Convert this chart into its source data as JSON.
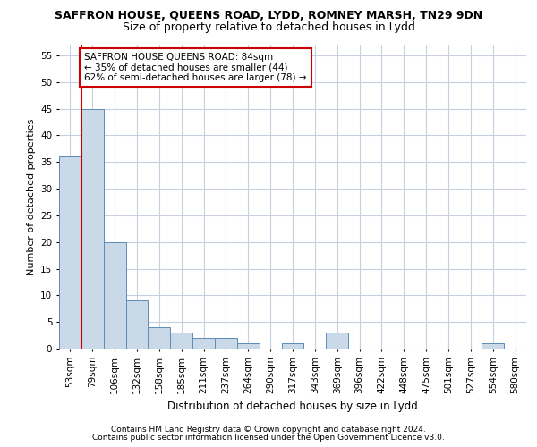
{
  "title": "SAFFRON HOUSE, QUEENS ROAD, LYDD, ROMNEY MARSH, TN29 9DN",
  "subtitle": "Size of property relative to detached houses in Lydd",
  "xlabel": "Distribution of detached houses by size in Lydd",
  "ylabel": "Number of detached properties",
  "bins": [
    "53sqm",
    "79sqm",
    "106sqm",
    "132sqm",
    "158sqm",
    "185sqm",
    "211sqm",
    "237sqm",
    "264sqm",
    "290sqm",
    "317sqm",
    "343sqm",
    "369sqm",
    "396sqm",
    "422sqm",
    "448sqm",
    "475sqm",
    "501sqm",
    "527sqm",
    "554sqm",
    "580sqm"
  ],
  "values": [
    36,
    45,
    20,
    9,
    4,
    3,
    2,
    2,
    1,
    0,
    1,
    0,
    3,
    0,
    0,
    0,
    0,
    0,
    0,
    1,
    0
  ],
  "bar_color": "#c9d9e8",
  "bar_edge_color": "#5b8db8",
  "grid_color": "#c8d0e0",
  "vline_color": "#cc0000",
  "annotation_text": "SAFFRON HOUSE QUEENS ROAD: 84sqm\n← 35% of detached houses are smaller (44)\n62% of semi-detached houses are larger (78) →",
  "annotation_box_color": "#ffffff",
  "annotation_box_edge": "#cc0000",
  "ylim": [
    0,
    57
  ],
  "yticks": [
    0,
    5,
    10,
    15,
    20,
    25,
    30,
    35,
    40,
    45,
    50,
    55
  ],
  "footer1": "Contains HM Land Registry data © Crown copyright and database right 2024.",
  "footer2": "Contains public sector information licensed under the Open Government Licence v3.0.",
  "title_fontsize": 9,
  "subtitle_fontsize": 9,
  "xlabel_fontsize": 8.5,
  "ylabel_fontsize": 8,
  "tick_fontsize": 7.5,
  "annotation_fontsize": 7.5,
  "footer_fontsize": 6.5
}
